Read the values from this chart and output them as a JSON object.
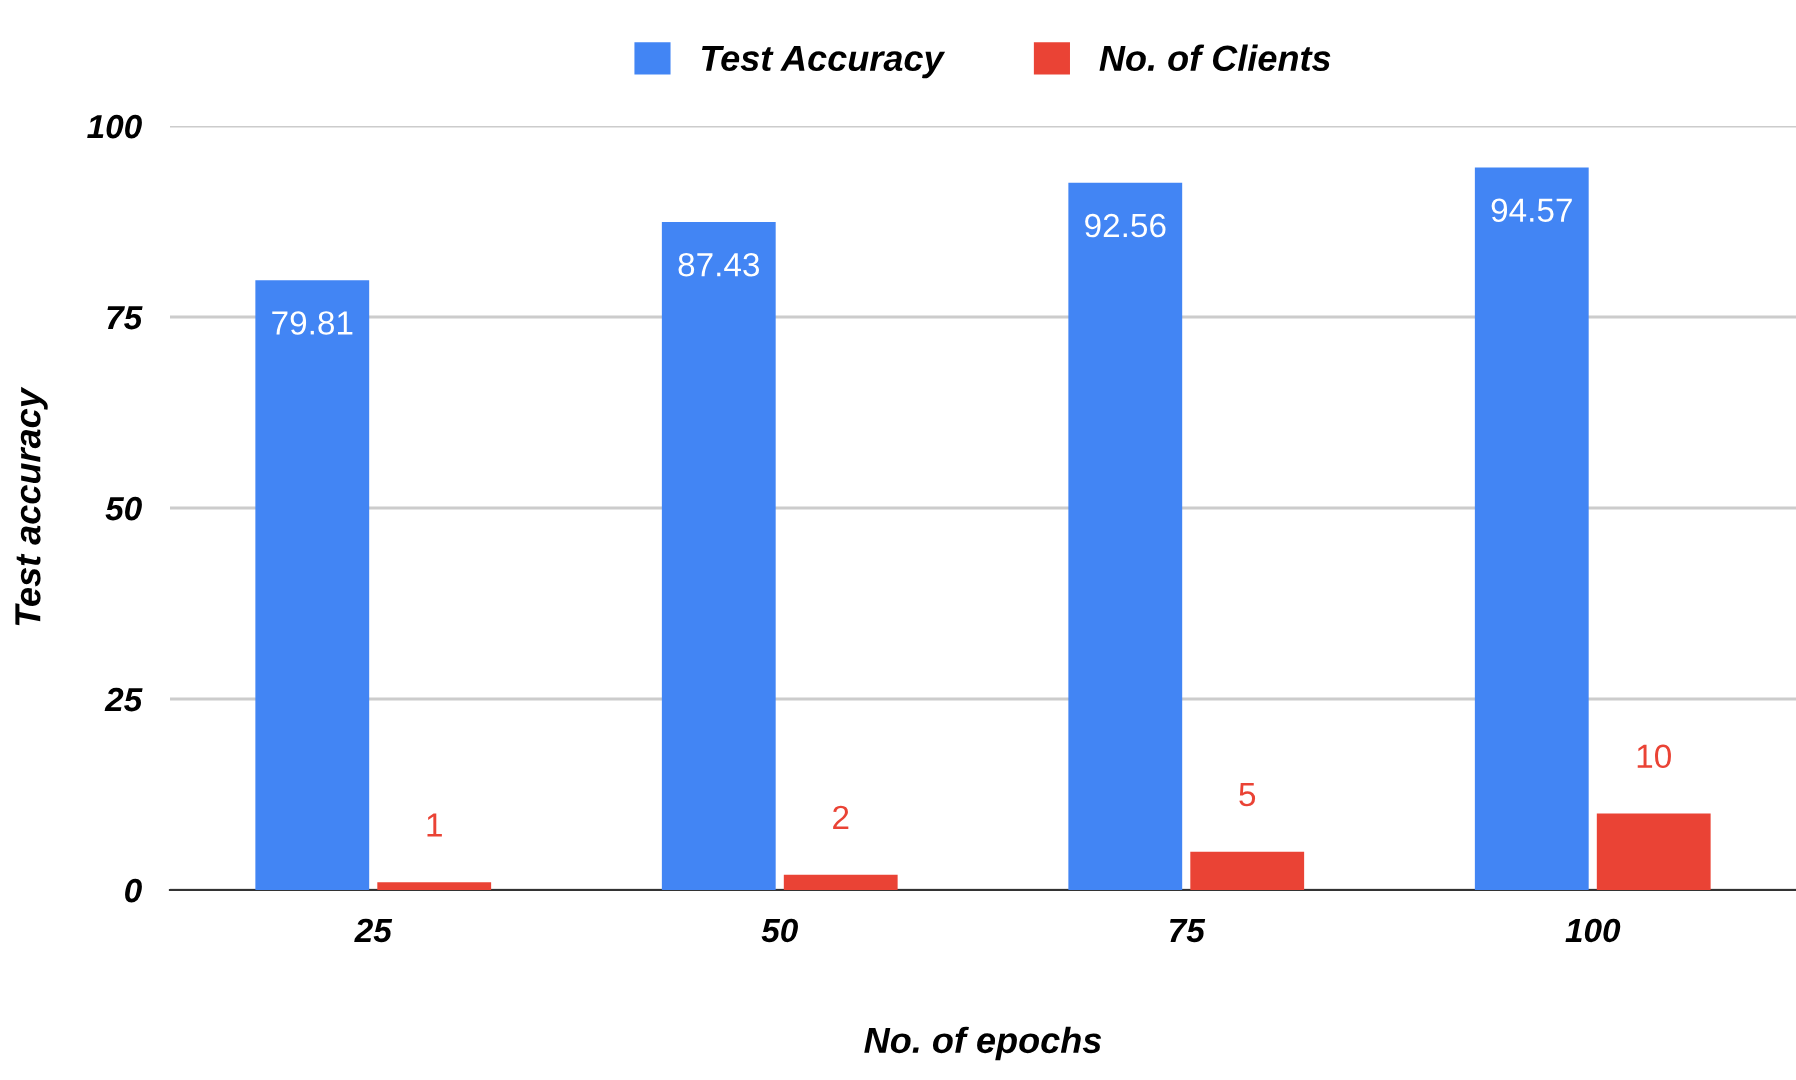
{
  "chart_data": {
    "type": "bar",
    "xlabel": "No. of epochs",
    "ylabel": "Test accuracy",
    "categories": [
      "25",
      "50",
      "75",
      "100"
    ],
    "series": [
      {
        "name": "Test Accuracy",
        "color": "#4285f4",
        "values": [
          79.81,
          87.43,
          92.56,
          94.57
        ]
      },
      {
        "name": "No. of Clients",
        "color": "#ea4335",
        "values": [
          1,
          2,
          5,
          10
        ]
      }
    ],
    "ylim": [
      0,
      100
    ],
    "yticks": [
      0,
      25,
      50,
      75,
      100
    ],
    "grid": "y",
    "legend": "top",
    "data_labels": true
  }
}
